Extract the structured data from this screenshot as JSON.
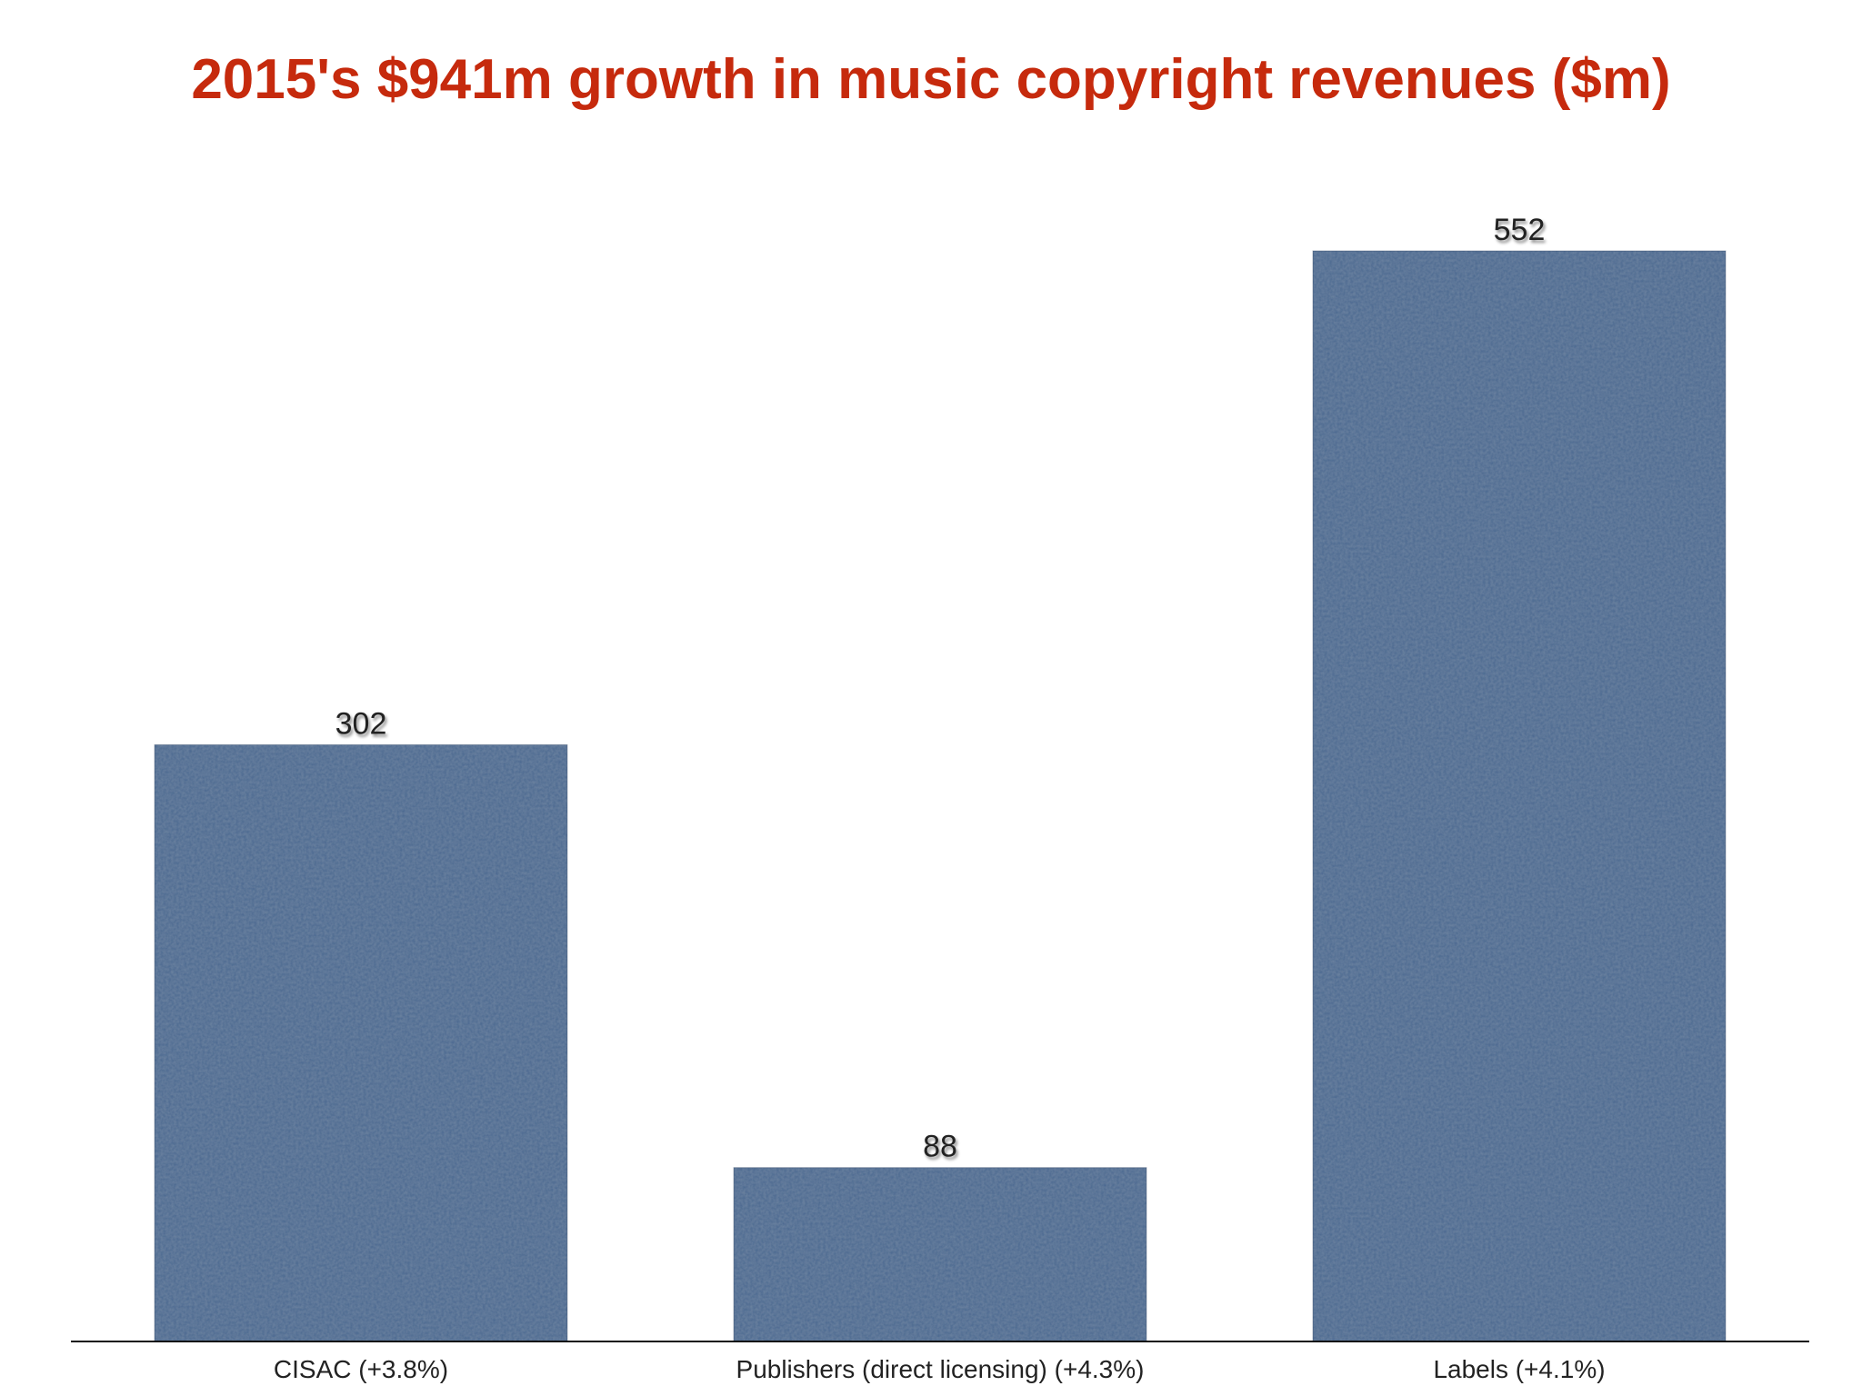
{
  "chart_data": {
    "type": "bar",
    "title": "2015's $941m growth in music copyright revenues ($m)",
    "categories": [
      "CISAC (+3.8%)",
      "Publishers (direct licensing) (+4.3%)",
      "Labels (+4.1%)"
    ],
    "values": [
      302,
      88,
      552
    ],
    "data_labels": [
      "302",
      "88",
      "552"
    ],
    "xlabel": "",
    "ylabel": "",
    "ylim": [
      0,
      552
    ],
    "grid": false,
    "legend": "none",
    "bar_color": "#4a6890",
    "title_color": "#c62a0d"
  }
}
